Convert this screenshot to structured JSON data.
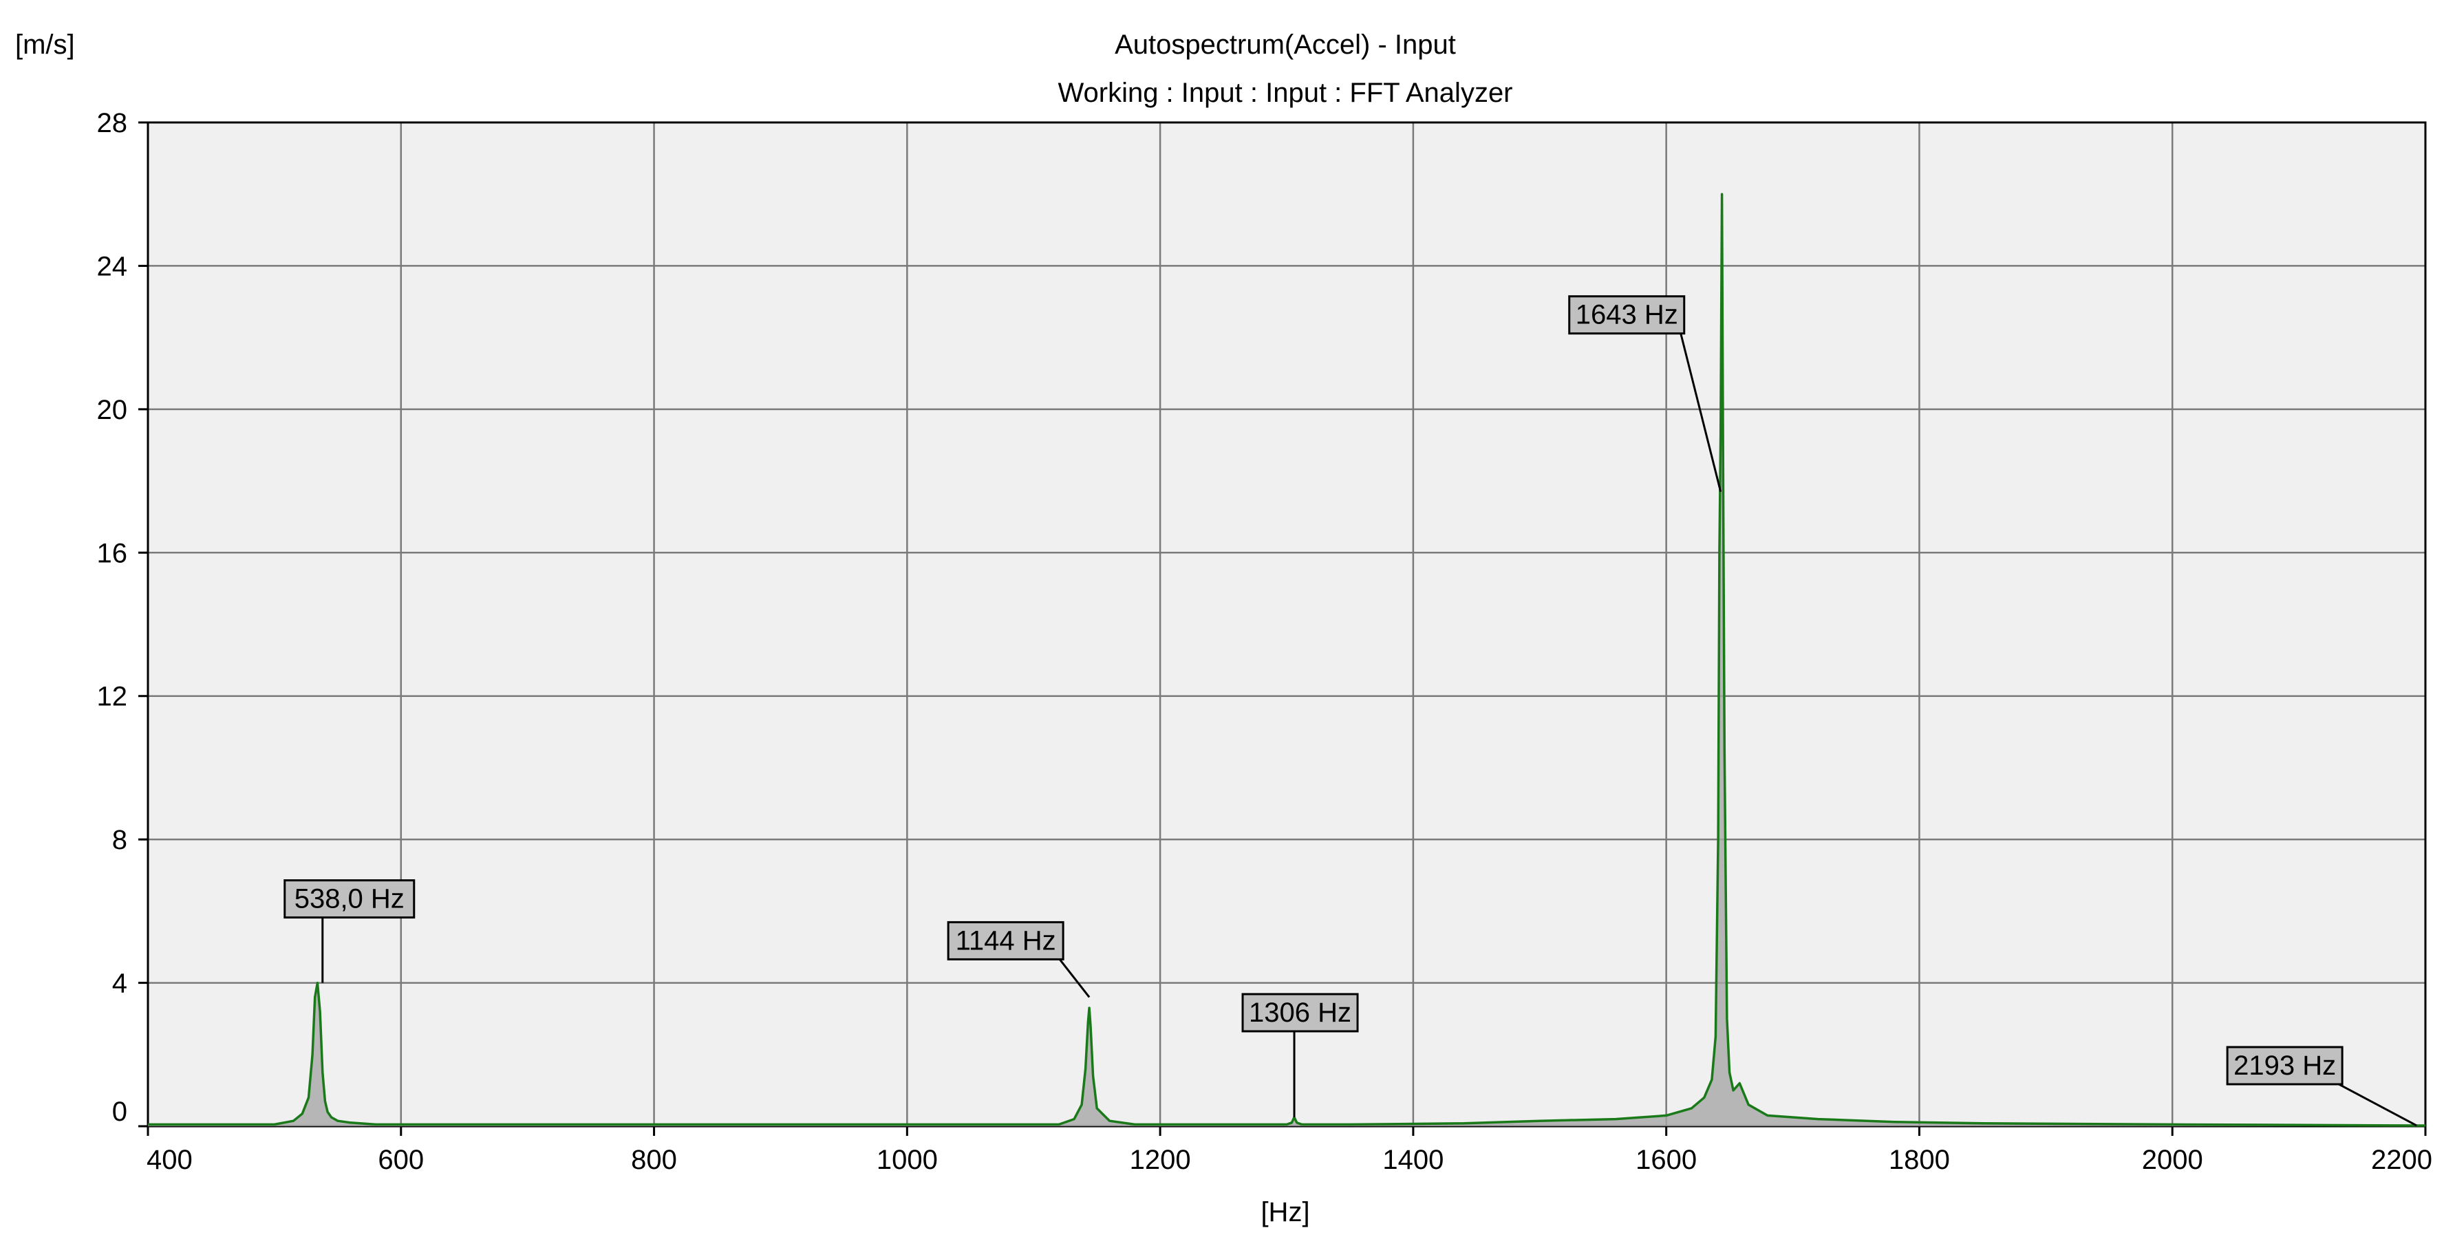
{
  "chart_data": {
    "type": "line",
    "title": "Autospectrum(Accel) - Input",
    "subtitle": "Working : Input : Input : FFT Analyzer",
    "xlabel": "[Hz]",
    "ylabel": "[m/s]",
    "xlim": [
      400,
      2200
    ],
    "ylim": [
      0,
      28
    ],
    "xticks": [
      400,
      600,
      800,
      1000,
      1200,
      1400,
      1600,
      1800,
      2000,
      2200
    ],
    "yticks": [
      0,
      4,
      8,
      12,
      16,
      20,
      24,
      28
    ],
    "grid": true,
    "colors": {
      "plot_background": "#f0f0f0",
      "series_line": "#1a7a1a",
      "series_fill": "#a8a8a8",
      "marker_box": "#c0c0c0"
    },
    "series": [
      {
        "x": [
          400,
          500,
          515,
          522,
          527,
          530,
          532,
          534,
          536,
          538,
          540,
          542,
          545,
          550,
          560,
          580,
          700,
          1120,
          1132,
          1138,
          1141,
          1143,
          1144,
          1145,
          1147,
          1150,
          1160,
          1180,
          1300,
          1304,
          1306,
          1308,
          1312,
          1350,
          1440,
          1500,
          1560,
          1600,
          1620,
          1630,
          1636,
          1639,
          1641,
          1642,
          1643,
          1644,
          1645,
          1646,
          1648,
          1650,
          1653,
          1658,
          1665,
          1680,
          1720,
          1780,
          1850,
          2000,
          2193,
          2200
        ],
        "y": [
          0.05,
          0.05,
          0.15,
          0.35,
          0.8,
          2.0,
          3.6,
          4.0,
          3.2,
          1.5,
          0.7,
          0.4,
          0.25,
          0.15,
          0.1,
          0.05,
          0.05,
          0.05,
          0.2,
          0.6,
          1.6,
          2.9,
          3.3,
          2.8,
          1.4,
          0.5,
          0.15,
          0.05,
          0.05,
          0.1,
          0.25,
          0.1,
          0.05,
          0.05,
          0.08,
          0.15,
          0.2,
          0.3,
          0.5,
          0.8,
          1.3,
          2.5,
          8.0,
          16.0,
          19.3,
          26.0,
          18.0,
          10.5,
          3.0,
          1.5,
          1.0,
          1.2,
          0.6,
          0.3,
          0.2,
          0.12,
          0.08,
          0.05,
          0.02,
          0.02
        ]
      }
    ],
    "annotations": [
      {
        "label": "538,0 Hz",
        "x": 538,
        "y": 4.0
      },
      {
        "label": "1144 Hz",
        "x": 1144,
        "y": 3.6
      },
      {
        "label": "1306 Hz",
        "x": 1306,
        "y": 0.25
      },
      {
        "label": "1643 Hz",
        "x": 1643,
        "y": 17.7
      },
      {
        "label": "2193 Hz",
        "x": 2193,
        "y": 0.02
      }
    ]
  }
}
